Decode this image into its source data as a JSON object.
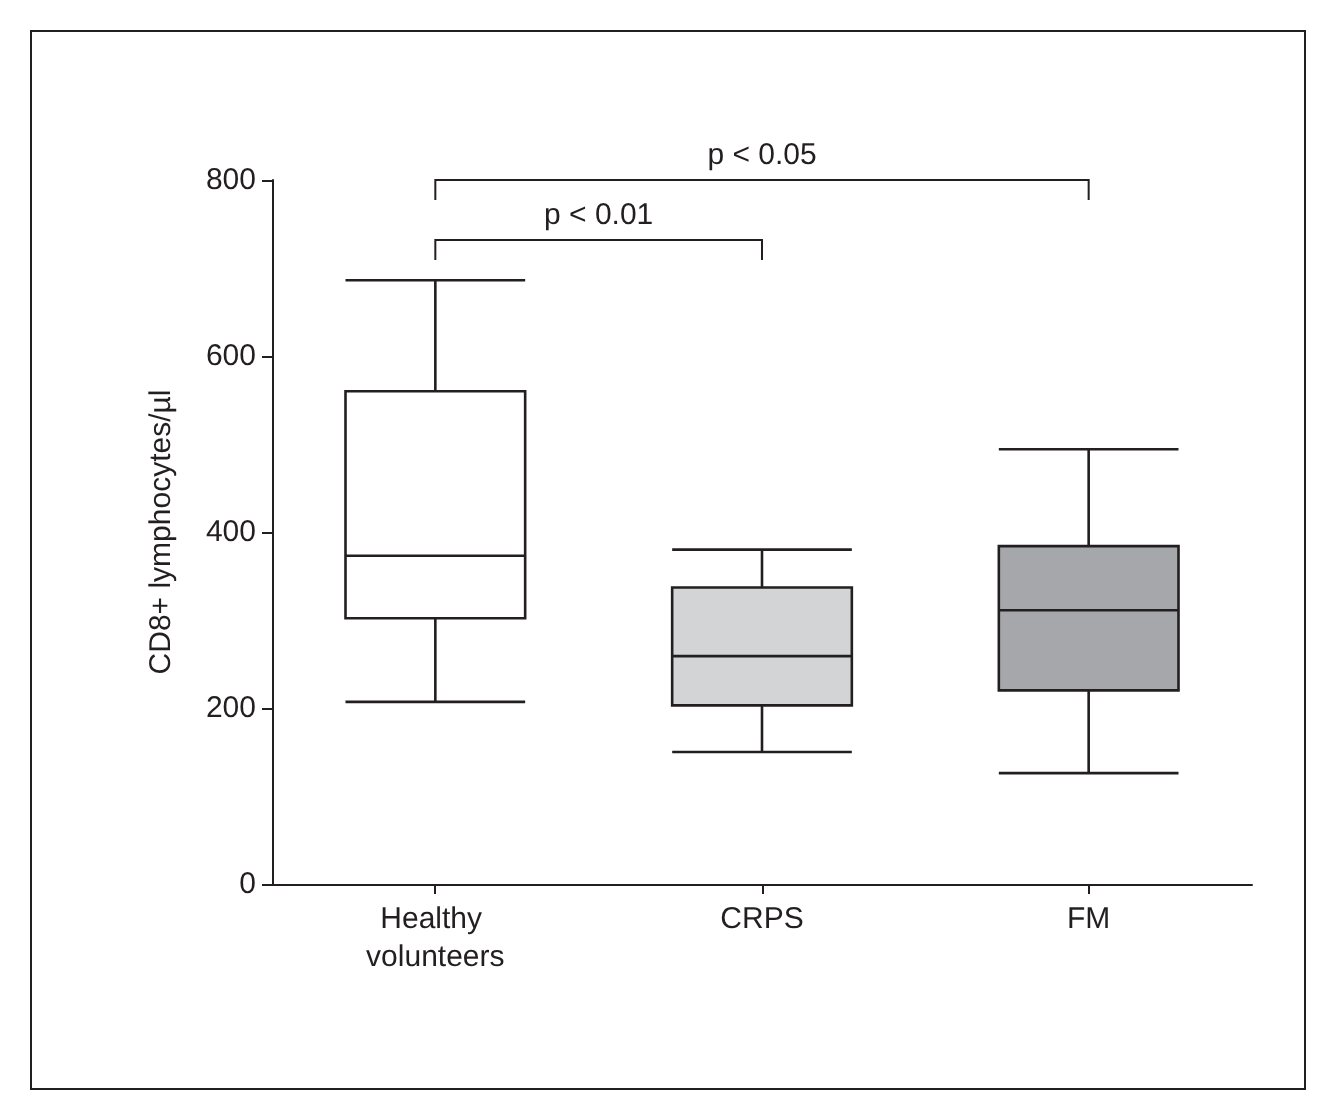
{
  "chart_data": {
    "type": "box",
    "ylabel": "CD8+ lymphocytes/µl",
    "categories": [
      "Healthy volunteers",
      "CRPS",
      "FM"
    ],
    "colors": [
      "#ffffff",
      "#d3d4d6",
      "#a6a7aa"
    ],
    "boxes": [
      {
        "low": 207,
        "q1": 302,
        "median": 373,
        "q3": 560,
        "high": 686
      },
      {
        "low": 150,
        "q1": 203,
        "median": 259,
        "q3": 337,
        "high": 380
      },
      {
        "low": 126,
        "q1": 220,
        "median": 311,
        "q3": 384,
        "high": 494
      }
    ],
    "ylim": [
      0,
      800
    ],
    "yticks": [
      0,
      200,
      400,
      600,
      800
    ],
    "grid": false,
    "annotations": [
      "p < 0.01",
      "p < 0.05"
    ]
  }
}
